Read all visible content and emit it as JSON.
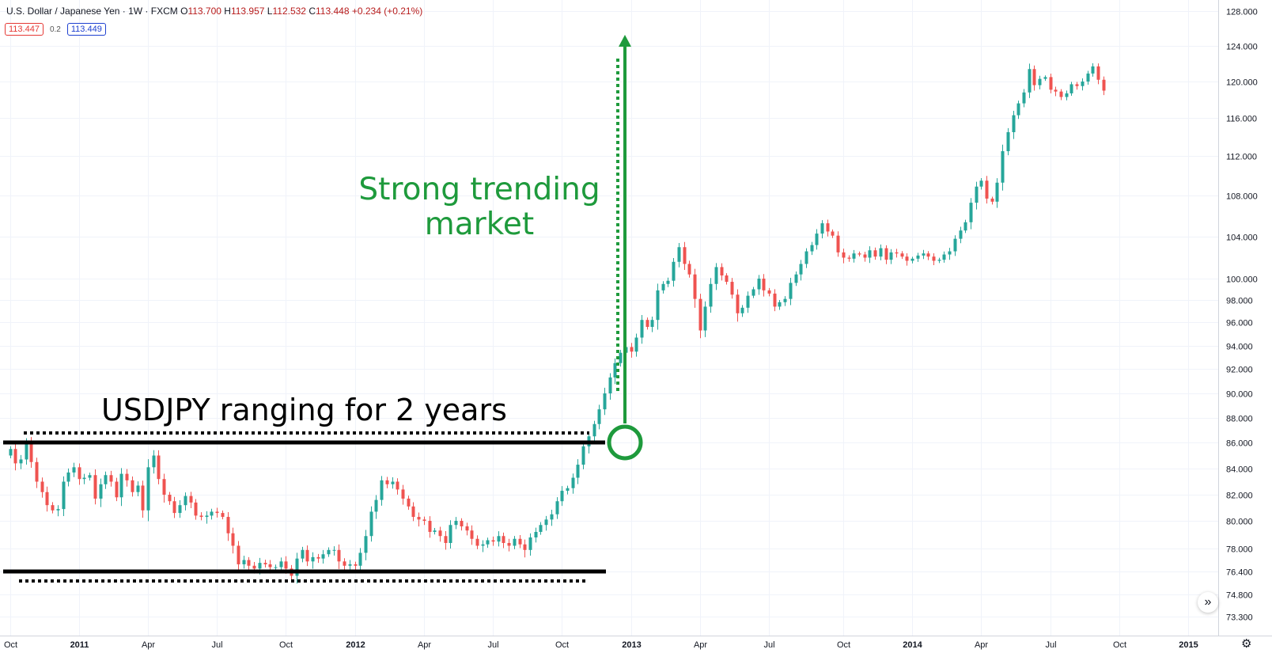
{
  "legend": {
    "symbol": "U.S. Dollar / Japanese Yen · 1W · FXCM",
    "open_label": "O",
    "open": "113.700",
    "high_label": "H",
    "high": "113.957",
    "low_label": "L",
    "low": "112.532",
    "close_label": "C",
    "close": "113.448",
    "change": "+0.234 (+0.21%)",
    "bid": "113.447",
    "spread": "0.2",
    "ask": "113.449"
  },
  "annotations": {
    "trend_line1": "Strong trending",
    "trend_line2": "market",
    "range_text": "USDJPY ranging for 2 years"
  },
  "icons": {
    "scroll": "double-chevron-right-icon",
    "settings": "gear-icon"
  },
  "colors": {
    "up": "#26a69a",
    "down": "#ef5350",
    "trend": "#1e9a3c",
    "range_lines": "#000000",
    "grid": "#f0f3fa"
  },
  "chart_data": {
    "type": "candlestick",
    "ylim": [
      73.3,
      128.0
    ],
    "y_ticks": [
      73.3,
      74.8,
      76.4,
      78.0,
      80.0,
      82.0,
      84.0,
      86.0,
      88.0,
      90.0,
      92.0,
      94.0,
      96.0,
      98.0,
      100.0,
      104.0,
      108.0,
      112.0,
      116.0,
      120.0,
      124.0,
      128.0
    ],
    "y_tick_labels": [
      "73.300",
      "74.800",
      "76.400",
      "78.000",
      "80.000",
      "82.000",
      "84.000",
      "86.000",
      "88.000",
      "90.000",
      "92.000",
      "94.000",
      "96.000",
      "98.000",
      "100.000",
      "104.000",
      "108.000",
      "112.000",
      "116.000",
      "120.000",
      "124.000",
      "128.000"
    ],
    "x_ticks": [
      {
        "label": "Oct",
        "t": 0.0
      },
      {
        "label": "2011",
        "t": 13.0
      },
      {
        "label": "Apr",
        "t": 26.0
      },
      {
        "label": "Jul",
        "t": 39.0
      },
      {
        "label": "Oct",
        "t": 52.0
      },
      {
        "label": "2012",
        "t": 65.0
      },
      {
        "label": "Apr",
        "t": 78.0
      },
      {
        "label": "Jul",
        "t": 91.0
      },
      {
        "label": "Oct",
        "t": 104.0
      },
      {
        "label": "2013",
        "t": 117.0
      },
      {
        "label": "Apr",
        "t": 130.0
      },
      {
        "label": "Jul",
        "t": 143.0
      },
      {
        "label": "Oct",
        "t": 157.0
      },
      {
        "label": "2014",
        "t": 170.0
      },
      {
        "label": "Apr",
        "t": 183.0
      },
      {
        "label": "Jul",
        "t": 196.0
      },
      {
        "label": "Oct",
        "t": 209.0
      },
      {
        "label": "2015",
        "t": 222.0
      }
    ],
    "weekly_close": [
      85.5,
      84.4,
      84.7,
      86.0,
      84.5,
      83.0,
      82.2,
      81.2,
      80.8,
      80.9,
      83.0,
      83.7,
      84.1,
      83.2,
      83.3,
      83.5,
      81.7,
      82.8,
      83.5,
      83.0,
      81.8,
      83.6,
      83.1,
      82.2,
      82.7,
      80.8,
      84.1,
      85.0,
      83.2,
      82.0,
      81.5,
      80.6,
      81.2,
      81.9,
      81.4,
      80.4,
      80.3,
      80.4,
      80.7,
      80.6,
      80.3,
      79.1,
      78.2,
      76.9,
      77.2,
      76.8,
      76.6,
      77.0,
      76.9,
      76.7,
      76.7,
      77.1,
      76.6,
      76.1,
      77.3,
      77.9,
      77.1,
      77.4,
      77.3,
      77.6,
      77.9,
      77.9,
      77.1,
      76.8,
      76.9,
      76.8,
      77.7,
      78.9,
      80.7,
      81.6,
      83.1,
      82.8,
      83.0,
      82.4,
      81.7,
      81.1,
      80.3,
      80.1,
      80.0,
      79.2,
      79.3,
      78.9,
      78.4,
      79.7,
      80.0,
      79.6,
      79.3,
      78.7,
      78.2,
      78.3,
      78.6,
      78.5,
      78.9,
      78.4,
      78.2,
      78.7,
      78.3,
      77.9,
      78.8,
      79.2,
      79.7,
      80.1,
      80.5,
      81.5,
      82.3,
      82.5,
      83.3,
      84.3,
      85.7,
      86.5,
      87.5,
      88.7,
      90.0,
      91.3,
      92.5,
      93.4,
      93.9,
      93.5,
      94.7,
      96.2,
      95.6,
      96.2,
      98.9,
      99.5,
      99.8,
      101.6,
      103.0,
      101.4,
      100.4,
      98.1,
      95.3,
      97.4,
      99.5,
      101.1,
      100.3,
      99.7,
      98.5,
      96.8,
      97.3,
      98.4,
      99.0,
      100.0,
      98.9,
      98.6,
      97.4,
      97.8,
      98.1,
      99.6,
      100.4,
      101.4,
      102.6,
      103.2,
      104.3,
      105.3,
      104.5,
      104.1,
      102.5,
      102.0,
      101.9,
      102.4,
      102.3,
      102.0,
      102.7,
      102.1,
      102.9,
      101.8,
      102.5,
      102.4,
      102.1,
      101.7,
      101.9,
      102.2,
      102.4,
      102.1,
      101.7,
      101.8,
      102.3,
      102.6,
      103.8,
      104.6,
      105.4,
      107.3,
      108.9,
      109.5,
      107.7,
      107.4,
      109.3,
      112.5,
      114.5,
      116.3,
      117.6,
      118.8,
      121.4,
      119.6,
      120.3,
      120.5,
      119.1,
      118.9,
      118.3,
      118.7,
      119.7,
      119.5,
      120.0,
      120.9,
      121.7,
      120.2,
      119.0
    ]
  }
}
